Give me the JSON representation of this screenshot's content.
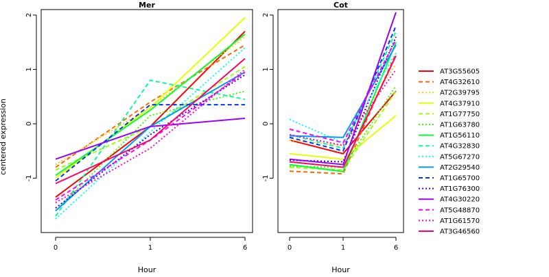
{
  "chart_data": {
    "type": "line",
    "ylabel": "centered expression",
    "xlabel": "Hour",
    "x": [
      "0",
      "1",
      "6"
    ],
    "ylim": [
      -2,
      2.1
    ],
    "yticks": [
      -1,
      0,
      1,
      2
    ],
    "grid": false,
    "legend_position": "right",
    "series_styles": [
      {
        "name": "AT3G55605",
        "color": "#FF0000",
        "dash": "solid"
      },
      {
        "name": "AT4G32610",
        "color": "#FF6600",
        "dash": "dashed"
      },
      {
        "name": "AT2G39795",
        "color": "#FFCC00",
        "dash": "dotted"
      },
      {
        "name": "AT4G37910",
        "color": "#E6FF00",
        "dash": "solid"
      },
      {
        "name": "AT1G77750",
        "color": "#99FF00",
        "dash": "dashed"
      },
      {
        "name": "AT1G63780",
        "color": "#33FF00",
        "dash": "dotted"
      },
      {
        "name": "AT1G56110",
        "color": "#00FF33",
        "dash": "solid"
      },
      {
        "name": "AT4G32830",
        "color": "#00FF99",
        "dash": "dashed"
      },
      {
        "name": "AT5G67270",
        "color": "#00FFFF",
        "dash": "dotted"
      },
      {
        "name": "AT2G29540",
        "color": "#0099FF",
        "dash": "solid"
      },
      {
        "name": "AT1G65700",
        "color": "#0033FF",
        "dash": "dashed"
      },
      {
        "name": "AT1G76300",
        "color": "#3300FF",
        "dash": "dotted"
      },
      {
        "name": "AT4G30220",
        "color": "#9900FF",
        "dash": "solid"
      },
      {
        "name": "AT5G48870",
        "color": "#FF00FF",
        "dash": "dashed"
      },
      {
        "name": "AT1G61570",
        "color": "#FF00CC",
        "dash": "dotted"
      },
      {
        "name": "AT3G46560",
        "color": "#FF0066",
        "dash": "solid"
      }
    ],
    "panels": [
      {
        "title": "Mer",
        "series": [
          {
            "name": "AT3G55605",
            "values": [
              -1.35,
              -0.05,
              1.7
            ]
          },
          {
            "name": "AT4G32610",
            "values": [
              -0.8,
              0.4,
              1.45
            ]
          },
          {
            "name": "AT2G39795",
            "values": [
              -0.75,
              0.3,
              1.6
            ]
          },
          {
            "name": "AT4G37910",
            "values": [
              -1.0,
              0.3,
              1.95
            ]
          },
          {
            "name": "AT1G77750",
            "values": [
              -0.85,
              -0.05,
              1.05
            ]
          },
          {
            "name": "AT1G63780",
            "values": [
              -1.6,
              0.15,
              0.6
            ]
          },
          {
            "name": "AT1G56110",
            "values": [
              -0.95,
              0.25,
              1.65
            ]
          },
          {
            "name": "AT4G32830",
            "values": [
              -1.7,
              0.8,
              0.45
            ]
          },
          {
            "name": "AT5G67270",
            "values": [
              -1.75,
              -0.15,
              1.4
            ]
          },
          {
            "name": "AT2G29540",
            "values": [
              -1.6,
              -0.05,
              0.95
            ]
          },
          {
            "name": "AT1G65700",
            "values": [
              -1.05,
              0.35,
              0.35
            ]
          },
          {
            "name": "AT1G76300",
            "values": [
              -1.55,
              -0.2,
              0.9
            ]
          },
          {
            "name": "AT4G30220",
            "values": [
              -0.65,
              -0.05,
              0.1
            ]
          },
          {
            "name": "AT5G48870",
            "values": [
              -1.4,
              -0.3,
              0.95
            ]
          },
          {
            "name": "AT1G61570",
            "values": [
              -1.45,
              -0.45,
              1.0
            ]
          },
          {
            "name": "AT3G46560",
            "values": [
              -1.1,
              -0.3,
              1.2
            ]
          }
        ]
      },
      {
        "title": "Cot",
        "series": [
          {
            "name": "AT3G55605",
            "values": [
              -0.3,
              -0.55,
              0.6
            ]
          },
          {
            "name": "AT4G32610",
            "values": [
              -0.87,
              -0.92,
              1.3
            ]
          },
          {
            "name": "AT2G39795",
            "values": [
              -0.3,
              -0.4,
              1.1
            ]
          },
          {
            "name": "AT4G37910",
            "values": [
              -0.55,
              -0.65,
              0.15
            ]
          },
          {
            "name": "AT1G77750",
            "values": [
              -0.8,
              -0.85,
              0.6
            ]
          },
          {
            "name": "AT1G63780",
            "values": [
              -0.78,
              -0.8,
              0.7
            ]
          },
          {
            "name": "AT1G56110",
            "values": [
              -0.75,
              -0.88,
              1.5
            ]
          },
          {
            "name": "AT4G32830",
            "values": [
              -0.2,
              -0.45,
              1.7
            ]
          },
          {
            "name": "AT5G67270",
            "values": [
              0.08,
              -0.35,
              1.3
            ]
          },
          {
            "name": "AT2G29540",
            "values": [
              -0.22,
              -0.25,
              1.45
            ]
          },
          {
            "name": "AT1G65700",
            "values": [
              -0.25,
              -0.5,
              1.8
            ]
          },
          {
            "name": "AT1G76300",
            "values": [
              -0.67,
              -0.7,
              1.6
            ]
          },
          {
            "name": "AT4G30220",
            "values": [
              -0.65,
              -0.75,
              2.05
            ]
          },
          {
            "name": "AT5G48870",
            "values": [
              -0.1,
              -0.35,
              1.55
            ]
          },
          {
            "name": "AT1G61570",
            "values": [
              -0.2,
              -0.4,
              1.0
            ]
          },
          {
            "name": "AT3G46560",
            "values": [
              -0.7,
              -0.8,
              1.25
            ]
          }
        ]
      }
    ]
  }
}
